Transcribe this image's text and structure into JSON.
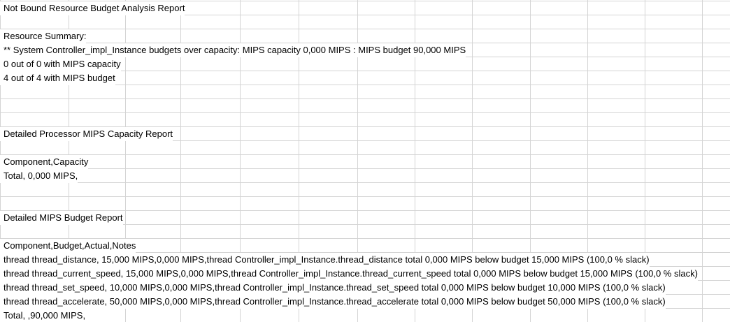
{
  "rows": [
    "Not Bound Resource Budget Analysis Report",
    "",
    "Resource Summary:",
    "**   System Controller_impl_Instance budgets over capacity: MIPS capacity 0,000 MIPS : MIPS budget 90,000 MIPS",
    " 0 out of 0 with MIPS capacity",
    " 4 out of 4 with MIPS budget",
    "",
    "",
    "",
    "Detailed Processor MIPS Capacity Report",
    "",
    "Component,Capacity",
    "Total, 0,000 MIPS,",
    "",
    "",
    "Detailed MIPS Budget Report",
    "",
    "Component,Budget,Actual,Notes",
    "thread thread_distance, 15,000 MIPS,0,000 MIPS,thread Controller_impl_Instance.thread_distance total 0,000 MIPS below budget 15,000 MIPS (100,0 % slack)",
    "thread thread_current_speed, 15,000 MIPS,0,000 MIPS,thread Controller_impl_Instance.thread_current_speed total 0,000 MIPS below budget 15,000 MIPS (100,0 % slack)",
    "thread thread_set_speed, 10,000 MIPS,0,000 MIPS,thread Controller_impl_Instance.thread_set_speed total 0,000 MIPS below budget 10,000 MIPS (100,0 % slack)",
    "thread thread_accelerate, 50,000 MIPS,0,000 MIPS,thread Controller_impl_Instance.thread_accelerate total 0,000 MIPS below budget 50,000 MIPS (100,0 % slack)",
    "Total, ,90,000 MIPS,"
  ]
}
